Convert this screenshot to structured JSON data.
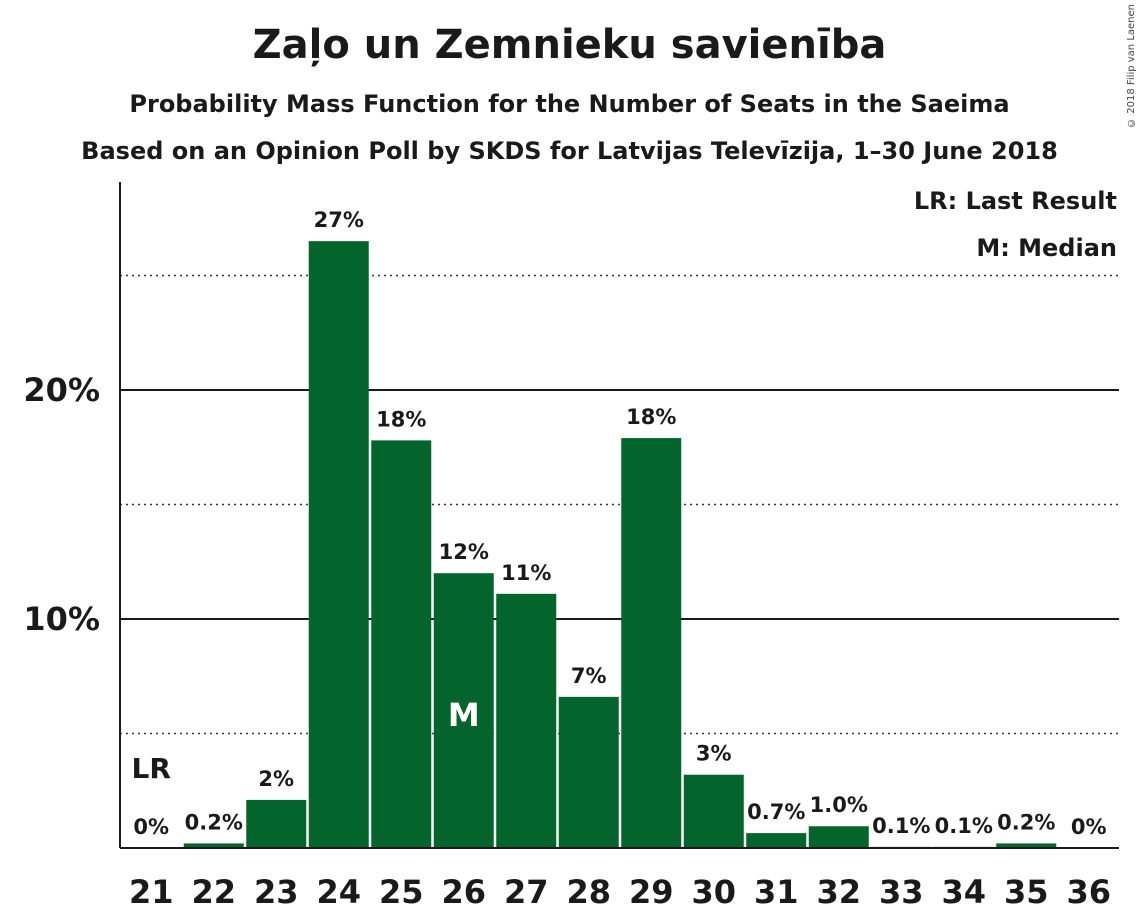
{
  "header": {
    "title": "Zaļo un Zemnieku savienība",
    "subtitle": "Probability Mass Function for the Number of Seats in the Saeima",
    "subtitle2": "Based on an Opinion Poll by SKDS for Latvijas Televīzija, 1–30 June 2018",
    "copyright": "© 2018 Filip van Laenen"
  },
  "chart_data": {
    "type": "bar",
    "categories": [
      "21",
      "22",
      "23",
      "24",
      "25",
      "26",
      "27",
      "28",
      "29",
      "30",
      "31",
      "32",
      "33",
      "34",
      "35",
      "36"
    ],
    "values": [
      0,
      0.2,
      2.1,
      26.5,
      17.8,
      12.0,
      11.1,
      6.6,
      17.9,
      3.2,
      0.65,
      0.95,
      0.05,
      0.05,
      0.2,
      0
    ],
    "labels": [
      "0%",
      "0.2%",
      "2%",
      "27%",
      "18%",
      "12%",
      "11%",
      "7%",
      "18%",
      "3%",
      "0.7%",
      "1.0%",
      "0.1%",
      "0.1%",
      "0.2%",
      "0%"
    ],
    "ylim": [
      0,
      29
    ],
    "yticks": [
      {
        "value": 10,
        "label": "10%"
      },
      {
        "value": 20,
        "label": "20%"
      }
    ],
    "minor_grid": [
      5,
      15,
      25
    ],
    "bar_color": "#04652c",
    "last_result": {
      "category": "21",
      "label": "LR"
    },
    "median": {
      "category": "26",
      "label": "M"
    },
    "legend": [
      "LR: Last Result",
      "M: Median"
    ],
    "legend_position": "top-right"
  }
}
